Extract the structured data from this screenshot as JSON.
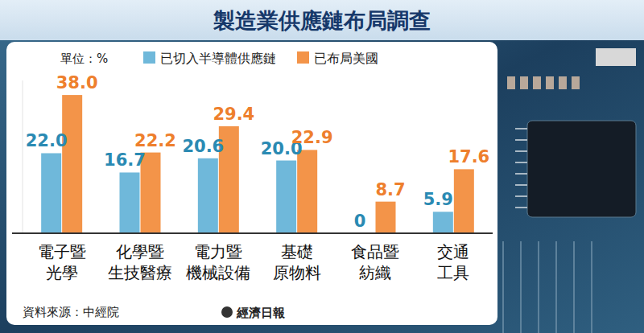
{
  "chart_data": {
    "type": "bar",
    "title": "製造業供應鏈布局調查",
    "unit": "單位：%",
    "source": "資料來源：中經院",
    "publisher": "經濟日報",
    "categories": [
      "電子暨光學",
      "化學暨生技醫療",
      "電力暨機械設備",
      "基礎原物料",
      "食品暨紡織",
      "交通工具"
    ],
    "series": [
      {
        "name": "已切入半導體供應鏈",
        "color": "#6fb8da",
        "values": [
          22.0,
          16.7,
          20.6,
          20.0,
          0,
          5.9
        ],
        "value_labels": [
          "22.0",
          "16.7",
          "20.6",
          "20.0",
          "0",
          "5.9"
        ]
      },
      {
        "name": "已布局美國",
        "color": "#f39449",
        "values": [
          38.0,
          22.2,
          29.4,
          22.9,
          8.7,
          17.6
        ],
        "value_labels": [
          "38.0",
          "22.2",
          "29.4",
          "22.9",
          "8.7",
          "17.6"
        ]
      }
    ],
    "ylim": [
      0,
      42
    ],
    "yticks": [],
    "data_labels": true,
    "legend": "top-left",
    "tick_labels": "x",
    "grid": false
  }
}
